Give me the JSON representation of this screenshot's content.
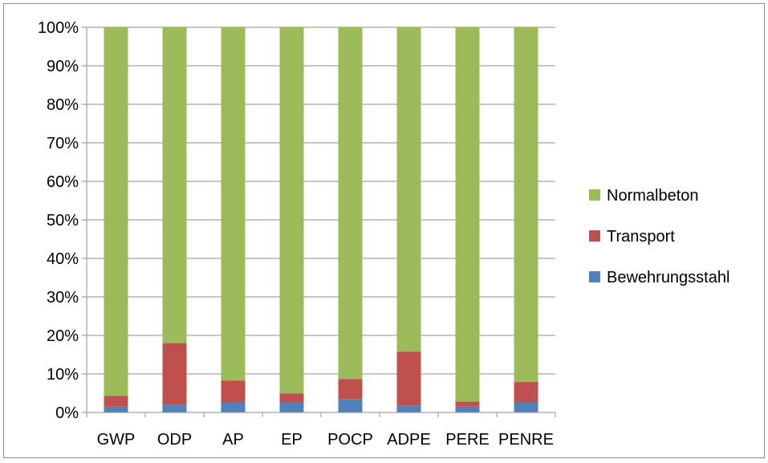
{
  "chart_data": {
    "type": "bar",
    "stacked": "percent",
    "categories": [
      "GWP",
      "ODP",
      "AP",
      "EP",
      "POCP",
      "ADPE",
      "PERE",
      "PENRE"
    ],
    "series": [
      {
        "name": "Bewehrungsstahl",
        "color": "#4f81bd",
        "values": [
          1.5,
          2.0,
          2.5,
          2.5,
          3.5,
          1.8,
          1.5,
          2.5
        ]
      },
      {
        "name": "Transport",
        "color": "#c0504d",
        "values": [
          2.8,
          16.0,
          5.8,
          2.4,
          5.2,
          14.0,
          1.3,
          5.4
        ]
      },
      {
        "name": "Normalbeton",
        "color": "#9bbb59",
        "values": [
          95.7,
          82.0,
          91.7,
          95.1,
          91.3,
          84.2,
          97.2,
          92.1
        ]
      }
    ],
    "y_ticks": [
      "0%",
      "10%",
      "20%",
      "30%",
      "40%",
      "50%",
      "60%",
      "70%",
      "80%",
      "90%",
      "100%"
    ],
    "ylim": [
      0,
      100
    ],
    "grid": true,
    "legend_position": "right",
    "legend_order": [
      "Normalbeton",
      "Transport",
      "Bewehrungsstahl"
    ]
  }
}
